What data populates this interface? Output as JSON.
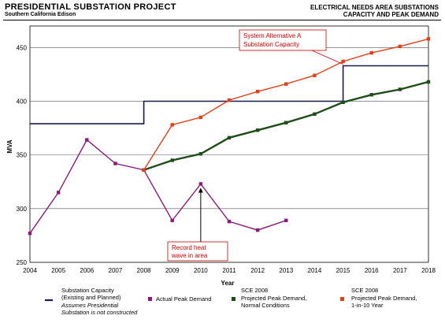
{
  "header": {
    "title": "PRESIDENTIAL SUBSTATION PROJECT",
    "subtitle": "Southern California Edison",
    "right_line1": "ELECTRICAL NEEDS AREA SUBSTATIONS",
    "right_line2": "CAPACITY AND PEAK DEMAND"
  },
  "chart_data": {
    "type": "line",
    "xlabel": "Year",
    "ylabel": "MVA",
    "ylim": [
      250,
      470
    ],
    "xlim": [
      2004,
      2018
    ],
    "yticks": [
      250,
      300,
      350,
      400,
      450
    ],
    "xticks": [
      2004,
      2005,
      2006,
      2007,
      2008,
      2009,
      2010,
      2011,
      2012,
      2013,
      2014,
      2015,
      2016,
      2017,
      2018
    ],
    "grid": "horizontal",
    "series": [
      {
        "key": "capacity",
        "name": "Substation Capacity (Existing and Planned)",
        "note": "Assumes Presidential Substation is not constructed",
        "color": "#1a1a4a",
        "style": "step",
        "points": [
          [
            2004,
            379
          ],
          [
            2008,
            379
          ],
          [
            2008,
            400
          ],
          [
            2015,
            400
          ],
          [
            2015,
            433
          ],
          [
            2018,
            433
          ]
        ]
      },
      {
        "key": "actual",
        "name": "Actual Peak Demand",
        "color": "#8b1a7a",
        "marker": "square",
        "points": [
          [
            2004,
            277
          ],
          [
            2005,
            315
          ],
          [
            2006,
            364
          ],
          [
            2007,
            342
          ],
          [
            2008,
            336
          ],
          [
            2009,
            289
          ],
          [
            2010,
            323
          ],
          [
            2011,
            288
          ],
          [
            2012,
            280
          ],
          [
            2013,
            289
          ]
        ]
      },
      {
        "key": "normal",
        "name": "Projected Peak Demand, Normal Conditions",
        "name_prefix": "SCE 2008",
        "color": "#1f4d1a",
        "marker": "square",
        "points": [
          [
            2008,
            336
          ],
          [
            2009,
            345
          ],
          [
            2010,
            351
          ],
          [
            2011,
            366
          ],
          [
            2012,
            373
          ],
          [
            2013,
            380
          ],
          [
            2014,
            388
          ],
          [
            2015,
            399
          ],
          [
            2016,
            406
          ],
          [
            2017,
            411
          ],
          [
            2018,
            418
          ]
        ]
      },
      {
        "key": "tenyear",
        "name": "Projected Peak Demand, 1-in-10 Year",
        "name_prefix": "SCE 2008",
        "color": "#e0401a",
        "marker": "square",
        "points": [
          [
            2008,
            336
          ],
          [
            2009,
            378
          ],
          [
            2010,
            385
          ],
          [
            2011,
            401
          ],
          [
            2012,
            409
          ],
          [
            2013,
            416
          ],
          [
            2014,
            424
          ],
          [
            2015,
            437
          ],
          [
            2016,
            445
          ],
          [
            2017,
            451
          ],
          [
            2018,
            458
          ]
        ]
      }
    ],
    "annotations": [
      {
        "key": "sysalt",
        "text_lines": [
          "System Alternative A",
          "Substation Capacity"
        ],
        "points_to": [
          2015,
          433
        ]
      },
      {
        "key": "heat",
        "text_lines": [
          "Record heat",
          "wave in area"
        ],
        "points_to": [
          2010,
          323
        ]
      }
    ]
  }
}
